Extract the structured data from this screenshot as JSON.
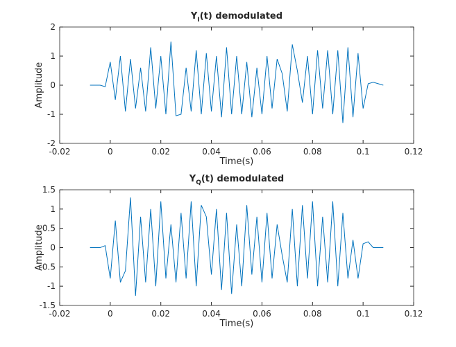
{
  "chart_data": [
    {
      "type": "line",
      "title": [
        "Y",
        "I",
        "(t) demodulated"
      ],
      "xlabel": "Time(s)",
      "ylabel": "Amplitude",
      "xlim": [
        -0.02,
        0.12
      ],
      "xticks": [
        -0.02,
        0,
        0.02,
        0.04,
        0.06,
        0.08,
        0.1,
        0.12
      ],
      "ylim": [
        -2,
        2
      ],
      "yticks": [
        -2,
        -1,
        0,
        1,
        2
      ],
      "x": [
        -0.008,
        -0.006,
        -0.004,
        -0.002,
        0,
        0.002,
        0.004,
        0.006,
        0.008,
        0.01,
        0.012,
        0.014,
        0.016,
        0.018,
        0.02,
        0.022,
        0.024,
        0.026,
        0.028,
        0.03,
        0.032,
        0.034,
        0.036,
        0.038,
        0.04,
        0.042,
        0.044,
        0.046,
        0.048,
        0.05,
        0.052,
        0.054,
        0.056,
        0.058,
        0.06,
        0.062,
        0.064,
        0.066,
        0.068,
        0.07,
        0.072,
        0.074,
        0.076,
        0.078,
        0.08,
        0.082,
        0.084,
        0.086,
        0.088,
        0.09,
        0.092,
        0.094,
        0.096,
        0.098,
        0.1,
        0.102,
        0.104,
        0.106,
        0.108
      ],
      "series": [
        {
          "color": "#0072bd",
          "values": [
            0,
            0,
            0,
            -0.05,
            0.8,
            -0.5,
            1.0,
            -0.9,
            0.9,
            -0.8,
            0.6,
            -0.9,
            1.3,
            -0.8,
            1.0,
            -1.0,
            1.5,
            -1.05,
            -1.0,
            0.6,
            -0.9,
            1.2,
            -1.0,
            1.1,
            -0.9,
            1.0,
            -1.1,
            1.3,
            -1.0,
            1.0,
            -1.0,
            0.8,
            -1.1,
            0.6,
            -1.0,
            1.0,
            -0.8,
            0.9,
            0.4,
            -0.9,
            1.4,
            0.5,
            -0.6,
            1.0,
            -1.0,
            1.2,
            -0.8,
            1.2,
            -1.0,
            1.2,
            -1.3,
            1.3,
            -1.1,
            1.1,
            -0.8,
            0.05,
            0.1,
            0.05,
            0
          ]
        }
      ]
    },
    {
      "type": "line",
      "title": [
        "Y",
        "Q",
        "(t) demodulated"
      ],
      "xlabel": "Time(s)",
      "ylabel": "Amplitude",
      "xlim": [
        -0.02,
        0.12
      ],
      "xticks": [
        -0.02,
        0,
        0.02,
        0.04,
        0.06,
        0.08,
        0.1,
        0.12
      ],
      "ylim": [
        -1.5,
        1.5
      ],
      "yticks": [
        -1.5,
        -1,
        -0.5,
        0,
        0.5,
        1,
        1.5
      ],
      "x": [
        -0.008,
        -0.006,
        -0.004,
        -0.002,
        0,
        0.002,
        0.004,
        0.006,
        0.008,
        0.01,
        0.012,
        0.014,
        0.016,
        0.018,
        0.02,
        0.022,
        0.024,
        0.026,
        0.028,
        0.03,
        0.032,
        0.034,
        0.036,
        0.038,
        0.04,
        0.042,
        0.044,
        0.046,
        0.048,
        0.05,
        0.052,
        0.054,
        0.056,
        0.058,
        0.06,
        0.062,
        0.064,
        0.066,
        0.068,
        0.07,
        0.072,
        0.074,
        0.076,
        0.078,
        0.08,
        0.082,
        0.084,
        0.086,
        0.088,
        0.09,
        0.092,
        0.094,
        0.096,
        0.098,
        0.1,
        0.102,
        0.104,
        0.106,
        0.108
      ],
      "series": [
        {
          "color": "#0072bd",
          "values": [
            0,
            0,
            0,
            0.05,
            -0.8,
            0.7,
            -0.9,
            -0.6,
            1.3,
            -1.25,
            0.8,
            -0.9,
            1.0,
            -1.0,
            1.2,
            -0.8,
            0.6,
            -0.9,
            0.9,
            -0.8,
            1.2,
            -1.0,
            1.1,
            0.8,
            -0.7,
            1.0,
            -1.1,
            0.9,
            -1.2,
            0.6,
            -1.0,
            1.1,
            -0.7,
            0.8,
            -0.9,
            0.9,
            -0.8,
            0.6,
            -0.2,
            -0.9,
            1.0,
            -1.0,
            1.1,
            -0.8,
            1.2,
            -1.0,
            0.8,
            -0.9,
            1.2,
            -1.0,
            0.9,
            -0.8,
            0.2,
            -0.8,
            0.1,
            0.15,
            0,
            0,
            0
          ]
        }
      ]
    }
  ]
}
